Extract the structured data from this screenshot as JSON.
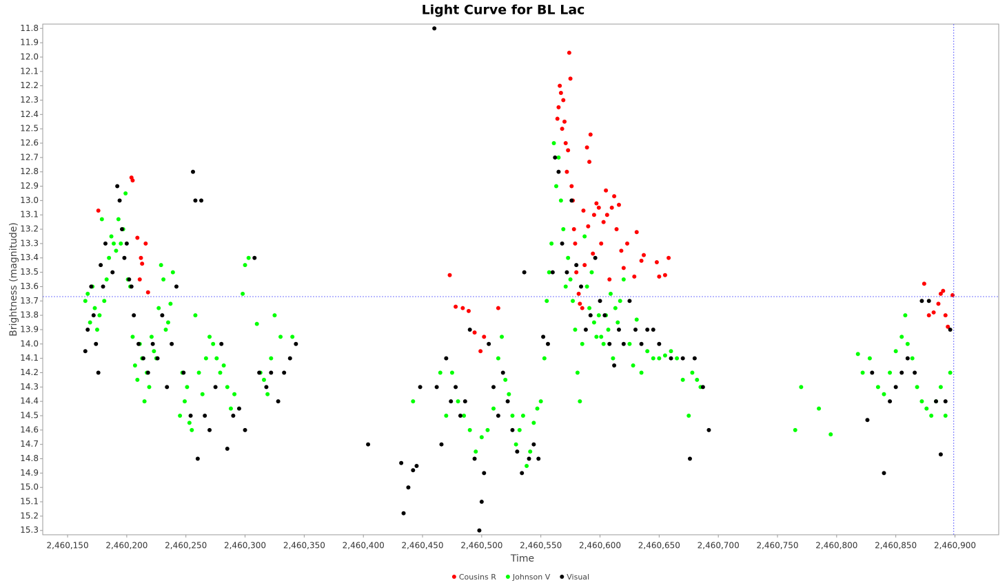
{
  "chart_data": {
    "type": "scatter",
    "title": "Light Curve for BL Lac",
    "x_label": "Time",
    "y_label": "Brightness (magnitude)",
    "xlim": [
      2460129,
      2460937
    ],
    "ylim": [
      11.77,
      15.33
    ],
    "y_inverted": true,
    "grid": false,
    "legend": "bottom",
    "crosshair": {
      "x": 2460899,
      "y": 13.67
    },
    "xticks": [
      {
        "value": 2460150,
        "label": "2,460,150"
      },
      {
        "value": 2460200,
        "label": "2,460,200"
      },
      {
        "value": 2460250,
        "label": "2,460,250"
      },
      {
        "value": 2460300,
        "label": "2,460,300"
      },
      {
        "value": 2460350,
        "label": "2,460,350"
      },
      {
        "value": 2460400,
        "label": "2,460,400"
      },
      {
        "value": 2460450,
        "label": "2,460,450"
      },
      {
        "value": 2460500,
        "label": "2,460,500"
      },
      {
        "value": 2460550,
        "label": "2,460,550"
      },
      {
        "value": 2460600,
        "label": "2,460,600"
      },
      {
        "value": 2460650,
        "label": "2,460,650"
      },
      {
        "value": 2460700,
        "label": "2,460,700"
      },
      {
        "value": 2460750,
        "label": "2,460,750"
      },
      {
        "value": 2460800,
        "label": "2,460,800"
      },
      {
        "value": 2460850,
        "label": "2,460,850"
      },
      {
        "value": 2460900,
        "label": "2,460,900"
      }
    ],
    "yticks": [
      11.8,
      11.9,
      {
        "value": 12,
        "label": "12.0"
      },
      12.1,
      12.2,
      12.3,
      12.4,
      12.5,
      12.6,
      12.7,
      12.8,
      12.9,
      {
        "value": 13,
        "label": "13.0"
      },
      13.1,
      13.2,
      13.3,
      13.4,
      13.5,
      13.6,
      13.7,
      13.8,
      13.9,
      {
        "value": 14,
        "label": "14.0"
      },
      14.1,
      14.2,
      14.3,
      14.4,
      14.5,
      14.6,
      14.7,
      14.8,
      14.9,
      {
        "value": 15,
        "label": "15.0"
      },
      15.1,
      15.2,
      15.3
    ],
    "series": [
      {
        "name": "Cousins R",
        "color": "#ff0000",
        "x": [
          2460176,
          2460204,
          2460205,
          2460209,
          2460212,
          2460213,
          2460211,
          2460216,
          2460218,
          2460473,
          2460478,
          2460484,
          2460489,
          2460494,
          2460499,
          2460502,
          2460514,
          2460564,
          2460565,
          2460566,
          2460567,
          2460568,
          2460569,
          2460570,
          2460571,
          2460572,
          2460573,
          2460574,
          2460575,
          2460576,
          2460577,
          2460578,
          2460579,
          2460580,
          2460582,
          2460583,
          2460585,
          2460586,
          2460587,
          2460589,
          2460590,
          2460591,
          2460592,
          2460594,
          2460595,
          2460597,
          2460599,
          2460601,
          2460603,
          2460605,
          2460606,
          2460608,
          2460610,
          2460612,
          2460614,
          2460616,
          2460618,
          2460620,
          2460623,
          2460629,
          2460631,
          2460635,
          2460637,
          2460648,
          2460650,
          2460655,
          2460658,
          2460874,
          2460878,
          2460882,
          2460886,
          2460888,
          2460890,
          2460892,
          2460894,
          2460898
        ],
        "values": [
          13.07,
          12.84,
          12.86,
          13.26,
          13.4,
          13.44,
          13.55,
          13.3,
          13.64,
          13.52,
          13.74,
          13.75,
          13.77,
          13.92,
          14.05,
          13.95,
          13.75,
          12.43,
          12.35,
          12.2,
          12.25,
          12.5,
          12.3,
          12.45,
          12.6,
          12.8,
          12.65,
          11.97,
          12.15,
          12.9,
          13.0,
          13.2,
          13.3,
          13.5,
          13.65,
          13.72,
          13.75,
          13.07,
          13.45,
          12.63,
          13.18,
          12.73,
          12.54,
          13.37,
          13.1,
          13.02,
          13.05,
          13.3,
          13.15,
          12.93,
          13.1,
          13.55,
          13.05,
          12.97,
          13.2,
          13.03,
          13.35,
          13.47,
          13.3,
          13.53,
          13.22,
          13.42,
          13.38,
          13.43,
          13.53,
          13.52,
          13.4,
          13.58,
          13.8,
          13.78,
          13.72,
          13.65,
          13.63,
          13.8,
          13.88,
          13.66
        ]
      },
      {
        "name": "Johnson V",
        "color": "#00ff00",
        "x": [
          2460165,
          2460167,
          2460169,
          2460171,
          2460173,
          2460175,
          2460177,
          2460179,
          2460181,
          2460183,
          2460185,
          2460187,
          2460189,
          2460191,
          2460193,
          2460195,
          2460197,
          2460199,
          2460201,
          2460203,
          2460205,
          2460207,
          2460209,
          2460211,
          2460213,
          2460215,
          2460217,
          2460219,
          2460221,
          2460223,
          2460225,
          2460227,
          2460229,
          2460231,
          2460233,
          2460235,
          2460237,
          2460239,
          2460245,
          2460247,
          2460249,
          2460251,
          2460253,
          2460255,
          2460258,
          2460261,
          2460264,
          2460267,
          2460270,
          2460273,
          2460276,
          2460279,
          2460282,
          2460285,
          2460288,
          2460291,
          2460298,
          2460300,
          2460303,
          2460310,
          2460313,
          2460316,
          2460319,
          2460322,
          2460325,
          2460330,
          2460340,
          2460442,
          2460465,
          2460470,
          2460475,
          2460480,
          2460485,
          2460490,
          2460495,
          2460500,
          2460505,
          2460510,
          2460514,
          2460517,
          2460520,
          2460523,
          2460526,
          2460529,
          2460532,
          2460535,
          2460538,
          2460541,
          2460544,
          2460547,
          2460550,
          2460553,
          2460555,
          2460557,
          2460559,
          2460561,
          2460563,
          2460565,
          2460567,
          2460569,
          2460571,
          2460573,
          2460575,
          2460577,
          2460579,
          2460581,
          2460583,
          2460585,
          2460587,
          2460589,
          2460591,
          2460593,
          2460595,
          2460597,
          2460599,
          2460601,
          2460603,
          2460605,
          2460607,
          2460609,
          2460611,
          2460613,
          2460615,
          2460617,
          2460620,
          2460625,
          2460628,
          2460631,
          2460635,
          2460640,
          2460645,
          2460650,
          2460655,
          2460660,
          2460665,
          2460670,
          2460675,
          2460678,
          2460682,
          2460685,
          2460765,
          2460770,
          2460785,
          2460795,
          2460818,
          2460822,
          2460828,
          2460835,
          2460840,
          2460845,
          2460850,
          2460855,
          2460858,
          2460860,
          2460864,
          2460868,
          2460872,
          2460876,
          2460880,
          2460884,
          2460888,
          2460892,
          2460896
        ],
        "values": [
          13.7,
          13.65,
          13.85,
          13.6,
          13.75,
          13.9,
          13.8,
          13.13,
          13.7,
          13.55,
          13.4,
          13.25,
          13.3,
          13.35,
          13.13,
          13.3,
          13.2,
          12.95,
          13.55,
          13.6,
          13.95,
          14.15,
          14.25,
          14.0,
          14.1,
          14.4,
          14.2,
          14.3,
          13.95,
          14.05,
          14.1,
          13.75,
          13.45,
          13.55,
          13.9,
          13.85,
          13.72,
          13.5,
          14.5,
          14.2,
          14.4,
          14.3,
          14.55,
          14.6,
          13.8,
          14.2,
          14.35,
          14.1,
          13.95,
          14.0,
          14.1,
          14.2,
          14.15,
          14.3,
          14.45,
          14.35,
          13.65,
          13.45,
          13.4,
          13.86,
          14.2,
          14.25,
          14.35,
          14.1,
          13.8,
          13.95,
          13.95,
          14.4,
          14.2,
          14.5,
          14.2,
          14.4,
          14.5,
          14.6,
          14.75,
          14.65,
          14.6,
          14.45,
          14.1,
          13.95,
          14.25,
          14.35,
          14.5,
          14.7,
          14.6,
          14.5,
          14.85,
          14.75,
          14.55,
          14.45,
          14.4,
          14.1,
          13.7,
          13.5,
          13.3,
          12.6,
          12.9,
          12.7,
          13.0,
          13.2,
          13.6,
          13.4,
          13.55,
          13.7,
          13.9,
          14.2,
          14.4,
          14.0,
          13.25,
          13.6,
          13.75,
          13.5,
          13.85,
          13.95,
          13.8,
          13.95,
          14.0,
          13.8,
          13.9,
          13.65,
          14.1,
          13.75,
          13.85,
          13.7,
          13.55,
          14.0,
          14.15,
          13.83,
          14.2,
          14.05,
          14.1,
          14.1,
          14.08,
          14.05,
          14.1,
          14.25,
          14.5,
          14.2,
          14.25,
          14.3,
          14.6,
          14.3,
          14.45,
          14.63,
          14.07,
          14.2,
          14.1,
          14.3,
          14.35,
          14.2,
          14.05,
          13.95,
          13.8,
          14.0,
          14.1,
          14.3,
          14.4,
          14.45,
          14.5,
          14.4,
          14.3,
          14.5,
          14.2
        ]
      },
      {
        "name": "Visual",
        "color": "#000000",
        "x": [
          2460165,
          2460167,
          2460170,
          2460172,
          2460174,
          2460176,
          2460178,
          2460180,
          2460182,
          2460188,
          2460192,
          2460194,
          2460196,
          2460198,
          2460200,
          2460202,
          2460204,
          2460206,
          2460210,
          2460214,
          2460218,
          2460222,
          2460226,
          2460230,
          2460234,
          2460238,
          2460242,
          2460248,
          2460254,
          2460256,
          2460258,
          2460260,
          2460263,
          2460266,
          2460270,
          2460275,
          2460280,
          2460285,
          2460290,
          2460295,
          2460300,
          2460308,
          2460312,
          2460318,
          2460322,
          2460328,
          2460333,
          2460338,
          2460343,
          2460404,
          2460432,
          2460434,
          2460438,
          2460442,
          2460445,
          2460448,
          2460460,
          2460462,
          2460466,
          2460470,
          2460474,
          2460478,
          2460482,
          2460486,
          2460490,
          2460494,
          2460498,
          2460500,
          2460502,
          2460506,
          2460510,
          2460514,
          2460518,
          2460522,
          2460526,
          2460530,
          2460534,
          2460536,
          2460540,
          2460544,
          2460548,
          2460552,
          2460556,
          2460560,
          2460562,
          2460565,
          2460568,
          2460572,
          2460576,
          2460580,
          2460584,
          2460588,
          2460592,
          2460596,
          2460600,
          2460604,
          2460608,
          2460612,
          2460616,
          2460620,
          2460625,
          2460630,
          2460635,
          2460640,
          2460645,
          2460650,
          2460660,
          2460670,
          2460676,
          2460680,
          2460687,
          2460692,
          2460826,
          2460830,
          2460840,
          2460845,
          2460850,
          2460855,
          2460860,
          2460866,
          2460872,
          2460878,
          2460884,
          2460888,
          2460892,
          2460896
        ],
        "values": [
          14.05,
          13.9,
          13.6,
          13.8,
          14.0,
          14.2,
          13.45,
          13.6,
          13.3,
          13.5,
          12.9,
          13.0,
          13.2,
          13.4,
          13.3,
          13.55,
          13.6,
          13.8,
          14.0,
          14.1,
          14.2,
          14.0,
          14.1,
          13.8,
          14.3,
          14.0,
          13.6,
          14.2,
          14.5,
          12.8,
          13.0,
          14.8,
          13.0,
          14.5,
          14.6,
          14.3,
          14.0,
          14.73,
          14.5,
          14.45,
          14.6,
          13.4,
          14.2,
          14.3,
          14.2,
          14.4,
          14.2,
          14.1,
          14.0,
          14.7,
          14.83,
          15.18,
          15.0,
          14.88,
          14.85,
          14.3,
          11.8,
          14.3,
          14.7,
          14.1,
          14.4,
          14.3,
          14.5,
          14.4,
          13.9,
          14.8,
          15.3,
          15.1,
          14.9,
          14.0,
          14.3,
          14.5,
          14.2,
          14.4,
          14.6,
          14.75,
          14.9,
          13.5,
          14.8,
          14.7,
          14.8,
          13.95,
          14.0,
          13.5,
          12.7,
          12.8,
          13.3,
          13.5,
          13.0,
          13.45,
          13.6,
          13.9,
          13.8,
          13.4,
          13.7,
          13.8,
          14.0,
          14.15,
          13.9,
          14.0,
          13.7,
          13.9,
          14.0,
          13.9,
          13.9,
          14.0,
          14.1,
          14.1,
          14.8,
          14.1,
          14.3,
          14.6,
          14.53,
          14.2,
          14.9,
          14.4,
          14.3,
          14.2,
          14.1,
          14.2,
          13.7,
          13.7,
          14.4,
          14.77,
          14.4,
          13.9
        ]
      }
    ]
  }
}
